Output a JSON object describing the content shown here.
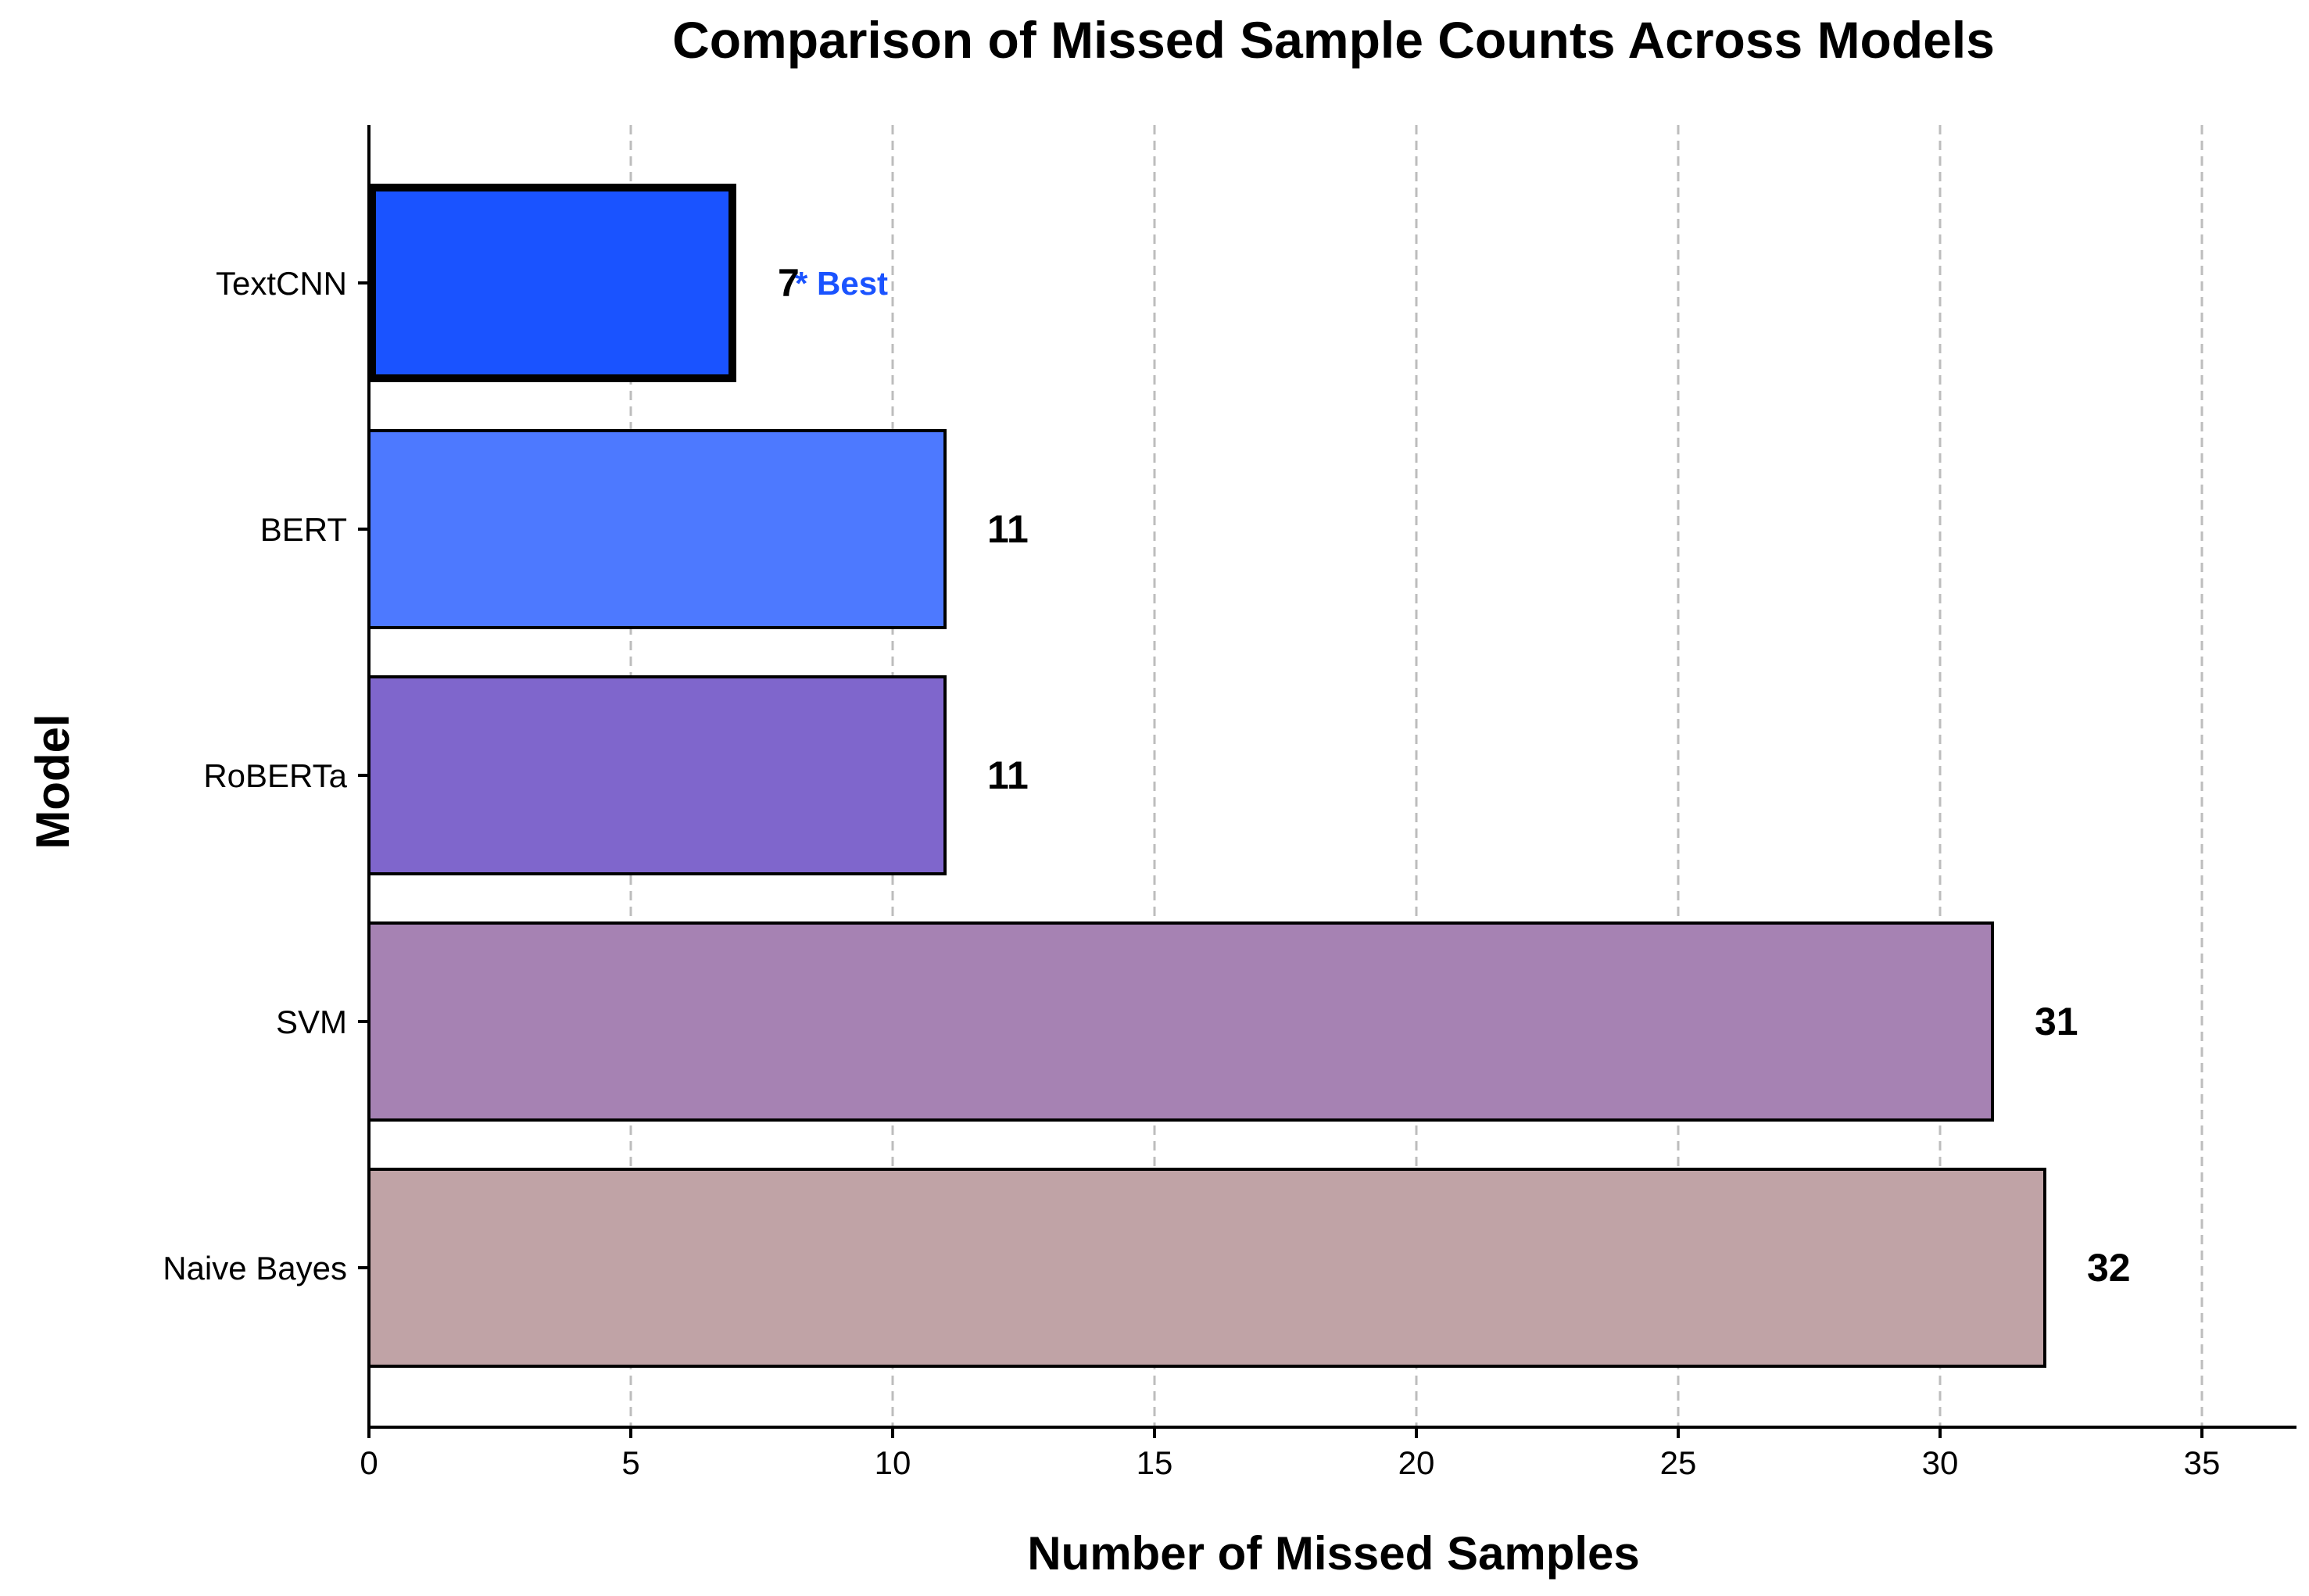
{
  "chart_data": {
    "type": "bar",
    "orientation": "horizontal",
    "title": "Comparison of Missed Sample Counts Across Models",
    "xlabel": "Number of Missed Samples",
    "ylabel": "Model",
    "categories": [
      "TextCNN",
      "BERT",
      "RoBERTa",
      "SVM",
      "Naive Bayes"
    ],
    "values": [
      7,
      11,
      11,
      31,
      32
    ],
    "bar_colors": [
      "#1a53ff",
      "#4d79ff",
      "#7f66cc",
      "#a682b3",
      "#c0a3a6"
    ],
    "highlight": {
      "category": "TextCNN",
      "annotation": "* Best",
      "annotation_color": "#1a53ff"
    },
    "xlim": [
      0,
      36.8
    ],
    "xticks": [
      0,
      5,
      10,
      15,
      20,
      25,
      30,
      35
    ],
    "grid": {
      "x": true,
      "style": "dashed"
    },
    "legend": "none"
  }
}
